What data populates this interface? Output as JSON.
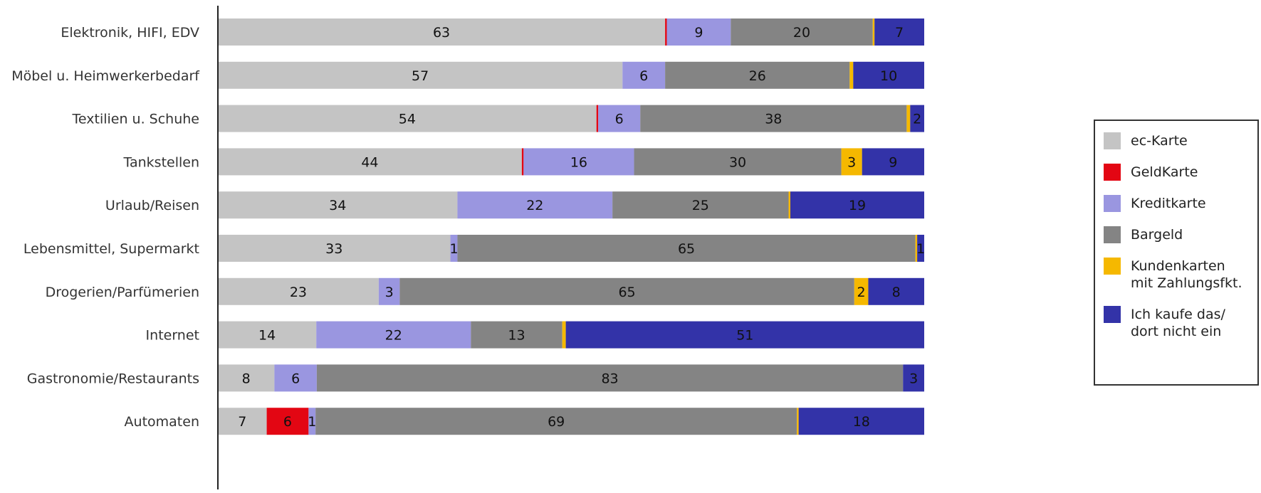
{
  "chart_data": {
    "type": "bar",
    "orientation": "horizontal",
    "stacked": true,
    "title": "",
    "xlabel": "",
    "ylabel": "",
    "xlim": [
      0,
      100
    ],
    "grid": false,
    "legend_position": "right",
    "categories": [
      "Elektronik, HIFI, EDV",
      "Möbel u. Heimwerkerbedarf",
      "Textilien u. Schuhe",
      "Tankstellen",
      "Urlaub/Reisen",
      "Lebensmittel, Supermarkt",
      "Drogerien/Parfümerien",
      "Internet",
      "Gastronomie/Restaurants",
      "Automaten"
    ],
    "series": [
      {
        "name": "ec-Karte",
        "color": "#c4c4c4",
        "values": [
          63,
          57,
          54,
          44,
          34,
          33,
          23,
          14,
          8,
          7
        ],
        "labels": [
          "63",
          "57",
          "54",
          "44",
          "34",
          "33",
          "23",
          "14",
          "8",
          "7"
        ]
      },
      {
        "name": "GeldKarte",
        "color": "#e30613",
        "values": [
          0.25,
          0,
          0.25,
          0.25,
          0,
          0,
          0,
          0,
          0,
          6
        ],
        "labels": [
          "",
          "",
          "",
          "",
          "",
          "",
          "",
          "",
          "",
          "6"
        ]
      },
      {
        "name": "Kreditkarte",
        "color": "#9a96e0",
        "values": [
          9,
          6,
          6,
          16,
          22,
          1,
          3,
          22,
          6,
          1
        ],
        "labels": [
          "9",
          "6",
          "6",
          "16",
          "22",
          "1",
          "3",
          "22",
          "6",
          "1"
        ]
      },
      {
        "name": "Bargeld",
        "color": "#848484",
        "values": [
          20,
          26,
          38,
          30,
          25,
          65,
          65,
          13,
          83,
          69
        ],
        "labels": [
          "20",
          "26",
          "38",
          "30",
          "25",
          "65",
          "65",
          "13",
          "83",
          "69"
        ]
      },
      {
        "name": "Kundenkarten mit Zahlungsfkt.",
        "color": "#f5b800",
        "values": [
          0.25,
          0.5,
          0.5,
          3,
          0.25,
          0.25,
          2,
          0.5,
          0,
          0.25
        ],
        "labels": [
          "",
          "",
          "",
          "3",
          "",
          "",
          "2",
          "",
          "",
          ""
        ]
      },
      {
        "name": "Ich kaufe das/ dort nicht ein",
        "color": "#3333a8",
        "values": [
          7,
          10,
          2,
          9,
          19,
          1,
          8,
          51,
          3,
          18
        ],
        "labels": [
          "7",
          "10",
          "2",
          "9",
          "19",
          "1",
          "8",
          "51",
          "3",
          "18"
        ]
      }
    ]
  },
  "legend": {
    "items": [
      {
        "lines": [
          "ec-Karte"
        ],
        "color": "#c4c4c4",
        "icon": "swatch"
      },
      {
        "lines": [
          "GeldKarte"
        ],
        "color": "#e30613",
        "icon": "swatch"
      },
      {
        "lines": [
          "Kreditkarte"
        ],
        "color": "#9a96e0",
        "icon": "swatch"
      },
      {
        "lines": [
          "Bargeld"
        ],
        "color": "#848484",
        "icon": "swatch"
      },
      {
        "lines": [
          "Kundenkarten",
          "mit Zahlungsfkt."
        ],
        "color": "#f5b800",
        "icon": "swatch"
      },
      {
        "lines": [
          "Ich kaufe das/",
          "dort nicht ein"
        ],
        "color": "#3333a8",
        "icon": "swatch"
      }
    ]
  }
}
